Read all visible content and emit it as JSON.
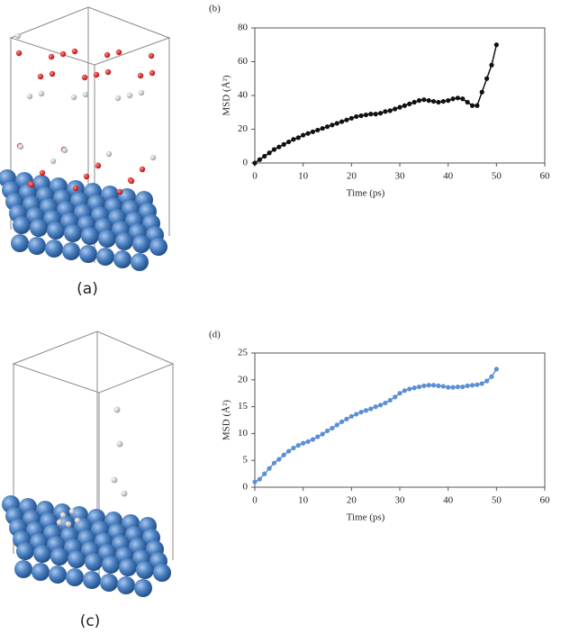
{
  "image_labels": [
    "(a)",
    "(c)"
  ],
  "chart_data": [
    {
      "type": "line",
      "title": "(b)",
      "x_label": "Time  (ps)",
      "y_label": "MSD (Å²)",
      "x": [
        0,
        1,
        2,
        3,
        4,
        5,
        6,
        7,
        8,
        9,
        10,
        11,
        12,
        13,
        14,
        15,
        16,
        17,
        18,
        19,
        20,
        21,
        22,
        23,
        24,
        25,
        26,
        27,
        28,
        29,
        30,
        31,
        32,
        33,
        34,
        35,
        36,
        37,
        38,
        39,
        40,
        41,
        42,
        43,
        44,
        45,
        46,
        47,
        48,
        49,
        50
      ],
      "series": [
        {
          "name": "MSD",
          "color": "#111111",
          "values": [
            0,
            2,
            4,
            6,
            8,
            9.5,
            11,
            12.5,
            14,
            15,
            16.5,
            17.5,
            18.5,
            19.5,
            20.5,
            21.5,
            22.5,
            23.5,
            24.5,
            25.5,
            26.5,
            27.5,
            28,
            28.5,
            29,
            29,
            29.5,
            30.5,
            31,
            32,
            33,
            34,
            35,
            36,
            37,
            37.5,
            37,
            36.5,
            36,
            36.5,
            37,
            38,
            38.5,
            38,
            36,
            34,
            34,
            42,
            50,
            58,
            70
          ]
        }
      ],
      "xlim": [
        0,
        60
      ],
      "xticks": [
        0,
        10,
        20,
        30,
        40,
        50,
        60
      ],
      "ylim": [
        0,
        80
      ],
      "yticks": [
        0,
        20,
        40,
        60,
        80
      ],
      "grid": false
    },
    {
      "type": "line",
      "title": "(d)",
      "x_label": "Time  (ps)",
      "y_label": "MSD (Å²)",
      "x": [
        0,
        1,
        2,
        3,
        4,
        5,
        6,
        7,
        8,
        9,
        10,
        11,
        12,
        13,
        14,
        15,
        16,
        17,
        18,
        19,
        20,
        21,
        22,
        23,
        24,
        25,
        26,
        27,
        28,
        29,
        30,
        31,
        32,
        33,
        34,
        35,
        36,
        37,
        38,
        39,
        40,
        41,
        42,
        43,
        44,
        45,
        46,
        47,
        48,
        49,
        50
      ],
      "series": [
        {
          "name": "MSD",
          "color": "#5b8fd6",
          "values": [
            1,
            1.5,
            2.5,
            3.5,
            4.5,
            5.2,
            6,
            6.7,
            7.3,
            7.8,
            8.2,
            8.5,
            8.9,
            9.4,
            9.9,
            10.5,
            11,
            11.6,
            12.2,
            12.7,
            13.2,
            13.6,
            14,
            14.3,
            14.6,
            15,
            15.3,
            15.7,
            16.2,
            16.8,
            17.5,
            18,
            18.3,
            18.5,
            18.7,
            18.9,
            19,
            19,
            18.9,
            18.8,
            18.6,
            18.6,
            18.7,
            18.7,
            18.9,
            19,
            19.1,
            19.3,
            19.8,
            20.6,
            22
          ]
        }
      ],
      "xlim": [
        0,
        60
      ],
      "xticks": [
        0,
        10,
        20,
        30,
        40,
        50,
        60
      ],
      "ylim": [
        0,
        25
      ],
      "yticks": [
        0,
        5,
        10,
        15,
        20,
        25
      ],
      "grid": false
    }
  ]
}
